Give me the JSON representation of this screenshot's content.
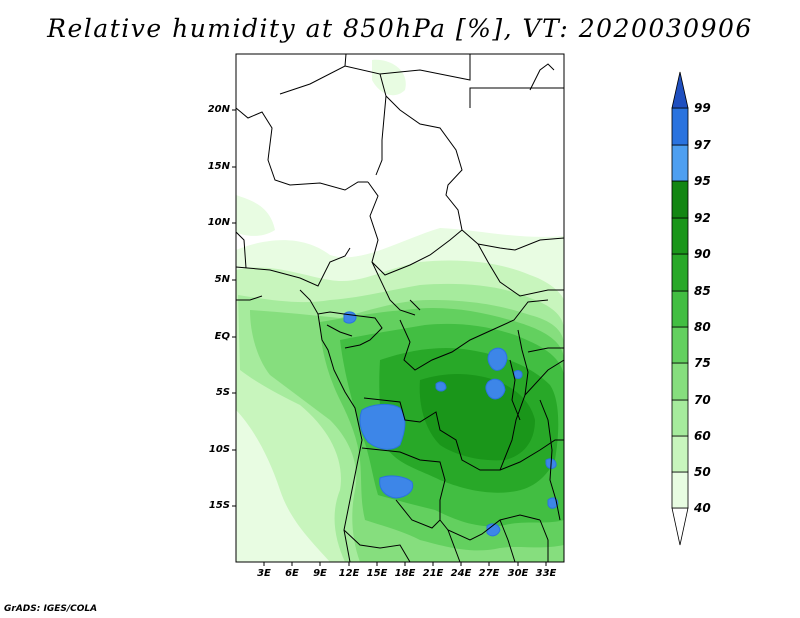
{
  "title": "Relative humidity at 850hPa [%], VT: 2020030906",
  "credit": "GrADS: IGES/COLA",
  "latitude_labels": [
    "20N",
    "15N",
    "10N",
    "5N",
    "EQ",
    "5S",
    "10S",
    "15S"
  ],
  "longitude_labels": [
    "3E",
    "6E",
    "9E",
    "12E",
    "15E",
    "18E",
    "21E",
    "24E",
    "27E",
    "30E",
    "33E"
  ],
  "colorbar": {
    "levels": [
      "40",
      "50",
      "60",
      "70",
      "75",
      "80",
      "85",
      "90",
      "92",
      "95",
      "97",
      "99"
    ],
    "colors": [
      "#ffffff",
      "#e8fce2",
      "#c8f5bd",
      "#a6eb9d",
      "#86de7e",
      "#63d05f",
      "#42be42",
      "#28a828",
      "#1a961a",
      "#138613",
      "#4e9ff0",
      "#2a73df",
      "#1f4fbf"
    ]
  },
  "map_colors": {
    "land_bg": "#ffffff",
    "border": "#000000",
    "high_rh": "#3d86e8"
  }
}
